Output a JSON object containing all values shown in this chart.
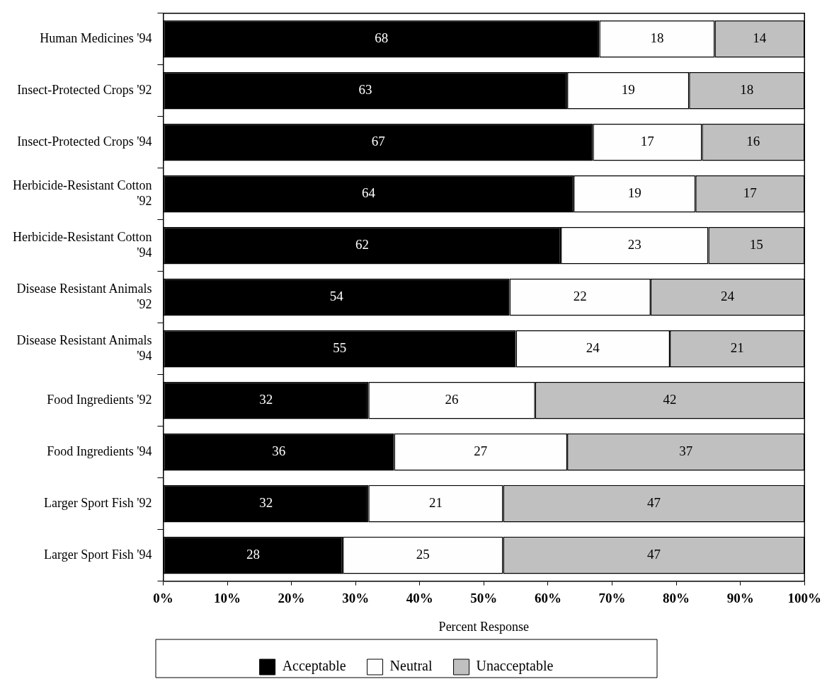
{
  "chart_data": {
    "type": "bar",
    "orientation": "horizontal",
    "stacked": true,
    "xlabel": "Percent Response",
    "categories": [
      "Human Medicines '94",
      "Insect-Protected Crops '92",
      "Insect-Protected Crops '94",
      "Herbicide-Resistant Cotton '92",
      "Herbicide-Resistant Cotton '94",
      "Disease Resistant Animals '92",
      "Disease Resistant Animals '94",
      "Food Ingredients '92",
      "Food Ingredients '94",
      "Larger Sport Fish '92",
      "Larger Sport Fish '94"
    ],
    "series": [
      {
        "name": "Acceptable",
        "color": "#000000",
        "values": [
          68,
          63,
          67,
          64,
          62,
          54,
          55,
          32,
          36,
          32,
          28
        ]
      },
      {
        "name": "Neutral",
        "color": "#fefefe",
        "values": [
          18,
          19,
          17,
          19,
          23,
          22,
          24,
          26,
          27,
          21,
          25
        ]
      },
      {
        "name": "Unacceptable",
        "color": "#c0c0c0",
        "values": [
          14,
          18,
          16,
          17,
          15,
          24,
          21,
          42,
          37,
          47,
          47
        ]
      }
    ],
    "xlim": [
      0,
      100
    ],
    "xticks": [
      {
        "value": 0,
        "label": "0%"
      },
      {
        "value": 10,
        "label": "10%"
      },
      {
        "value": 20,
        "label": "20%"
      },
      {
        "value": 30,
        "label": "30%"
      },
      {
        "value": 40,
        "label": "40%"
      },
      {
        "value": 50,
        "label": "50%"
      },
      {
        "value": 60,
        "label": "60%"
      },
      {
        "value": 70,
        "label": "70%"
      },
      {
        "value": 80,
        "label": "80%"
      },
      {
        "value": 90,
        "label": "90%"
      },
      {
        "value": 100,
        "label": "100%"
      }
    ],
    "data_labels": true,
    "grid": false,
    "legend": "bottom"
  }
}
